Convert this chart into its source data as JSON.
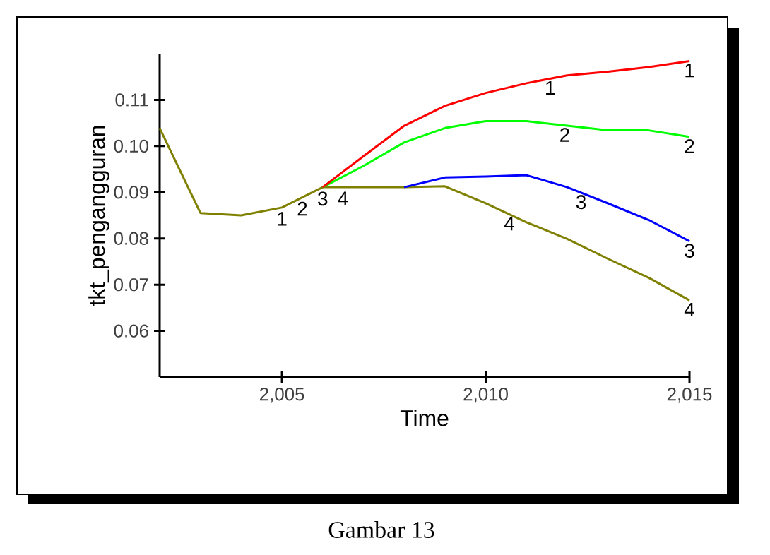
{
  "chart_data": {
    "type": "line",
    "xlabel": "Time",
    "ylabel": "tkt_pengangguran",
    "annotations": [
      "Gambar 13"
    ],
    "x": [
      2002,
      2003,
      2004,
      2005,
      2006,
      2007,
      2008,
      2009,
      2010,
      2011,
      2012,
      2013,
      2014,
      2015
    ],
    "series": [
      {
        "name": "1",
        "color": "#ff0000",
        "values": [
          null,
          null,
          null,
          null,
          0.0911,
          0.0978,
          0.1044,
          0.1087,
          0.1115,
          0.1136,
          0.1153,
          0.1161,
          0.1171,
          0.1184
        ]
      },
      {
        "name": "2",
        "color": "#00ff00",
        "values": [
          null,
          null,
          null,
          null,
          0.0911,
          0.0957,
          0.1008,
          0.1039,
          0.1054,
          0.1054,
          0.1044,
          0.1034,
          0.1034,
          0.102
        ]
      },
      {
        "name": "3",
        "color": "#0000ff",
        "values": [
          null,
          null,
          null,
          null,
          null,
          null,
          0.0911,
          0.0932,
          0.0934,
          0.0937,
          0.0911,
          0.0876,
          0.084,
          0.0794
        ]
      },
      {
        "name": "4",
        "color": "#808000",
        "values": [
          0.1039,
          0.0855,
          0.085,
          0.0867,
          0.0911,
          0.0911,
          0.0911,
          0.0913,
          0.0876,
          0.0835,
          0.0799,
          0.0756,
          0.0715,
          0.0666
        ]
      }
    ],
    "xlim": [
      2002,
      2015
    ],
    "ylim": [
      0.05,
      0.12
    ],
    "xticks": [
      {
        "value": 2005,
        "label": "2,005"
      },
      {
        "value": 2010,
        "label": "2,010"
      },
      {
        "value": 2015,
        "label": "2,015"
      }
    ],
    "yticks": [
      0.06,
      0.07,
      0.08,
      0.09,
      {
        "value": 0.1,
        "label": "0.10"
      },
      0.11
    ],
    "grid": false,
    "legend": false,
    "marker": "none",
    "line_style": "solid"
  }
}
